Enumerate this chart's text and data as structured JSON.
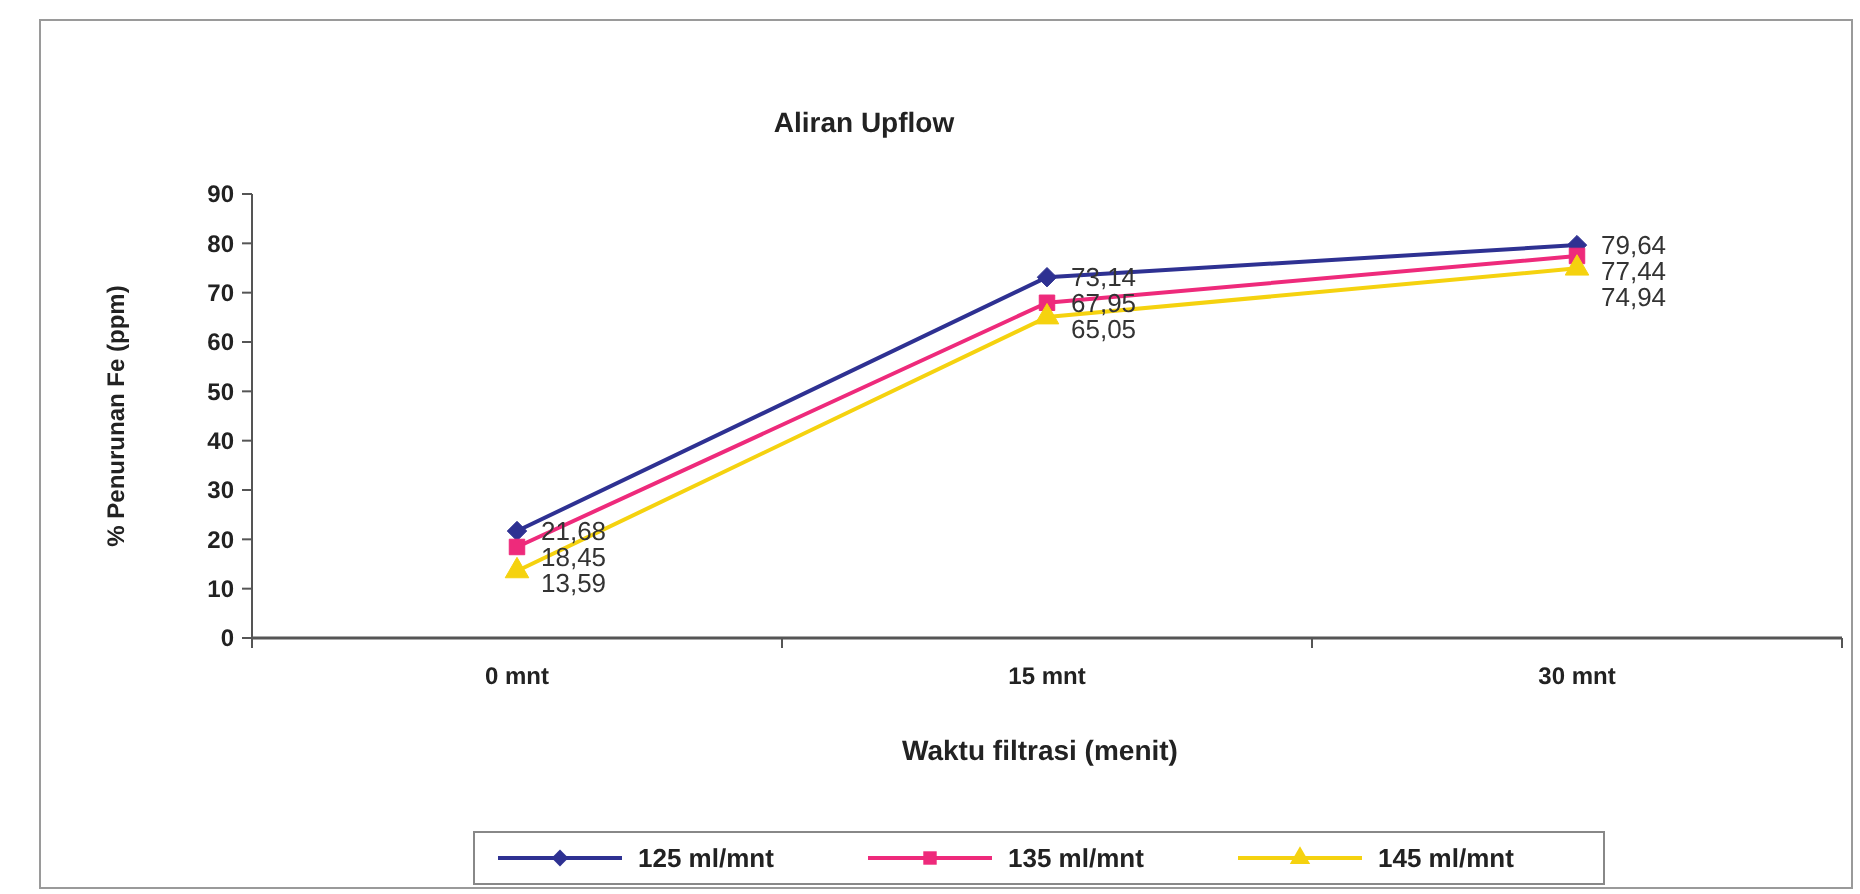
{
  "chart_data": {
    "type": "line",
    "title": "Aliran Upflow",
    "xlabel": "Waktu filtrasi (menit)",
    "ylabel": "% Penurunan Fe (ppm)",
    "categories": [
      "0 mnt",
      "15 mnt",
      "30 mnt"
    ],
    "series": [
      {
        "name": "125 ml/mnt",
        "color": "#2e3192",
        "marker": "diamond",
        "values": [
          21.68,
          73.14,
          79.64
        ],
        "value_labels": [
          "21,68",
          "73,14",
          "79,64"
        ]
      },
      {
        "name": "135 ml/mnt",
        "color": "#ee2a7b",
        "marker": "square",
        "values": [
          18.45,
          67.95,
          77.44
        ],
        "value_labels": [
          "18,45",
          "67,95",
          "77,44"
        ]
      },
      {
        "name": "145 ml/mnt",
        "color": "#f5d20f",
        "marker": "triangle",
        "values": [
          13.59,
          65.05,
          74.94
        ],
        "value_labels": [
          "13,59",
          "65,05",
          "74,94"
        ]
      }
    ],
    "ylim": [
      0,
      90
    ],
    "yticks": [
      0,
      10,
      20,
      30,
      40,
      50,
      60,
      70,
      80,
      90
    ],
    "grid": false,
    "legend": "bottom",
    "line_style": "solid"
  }
}
